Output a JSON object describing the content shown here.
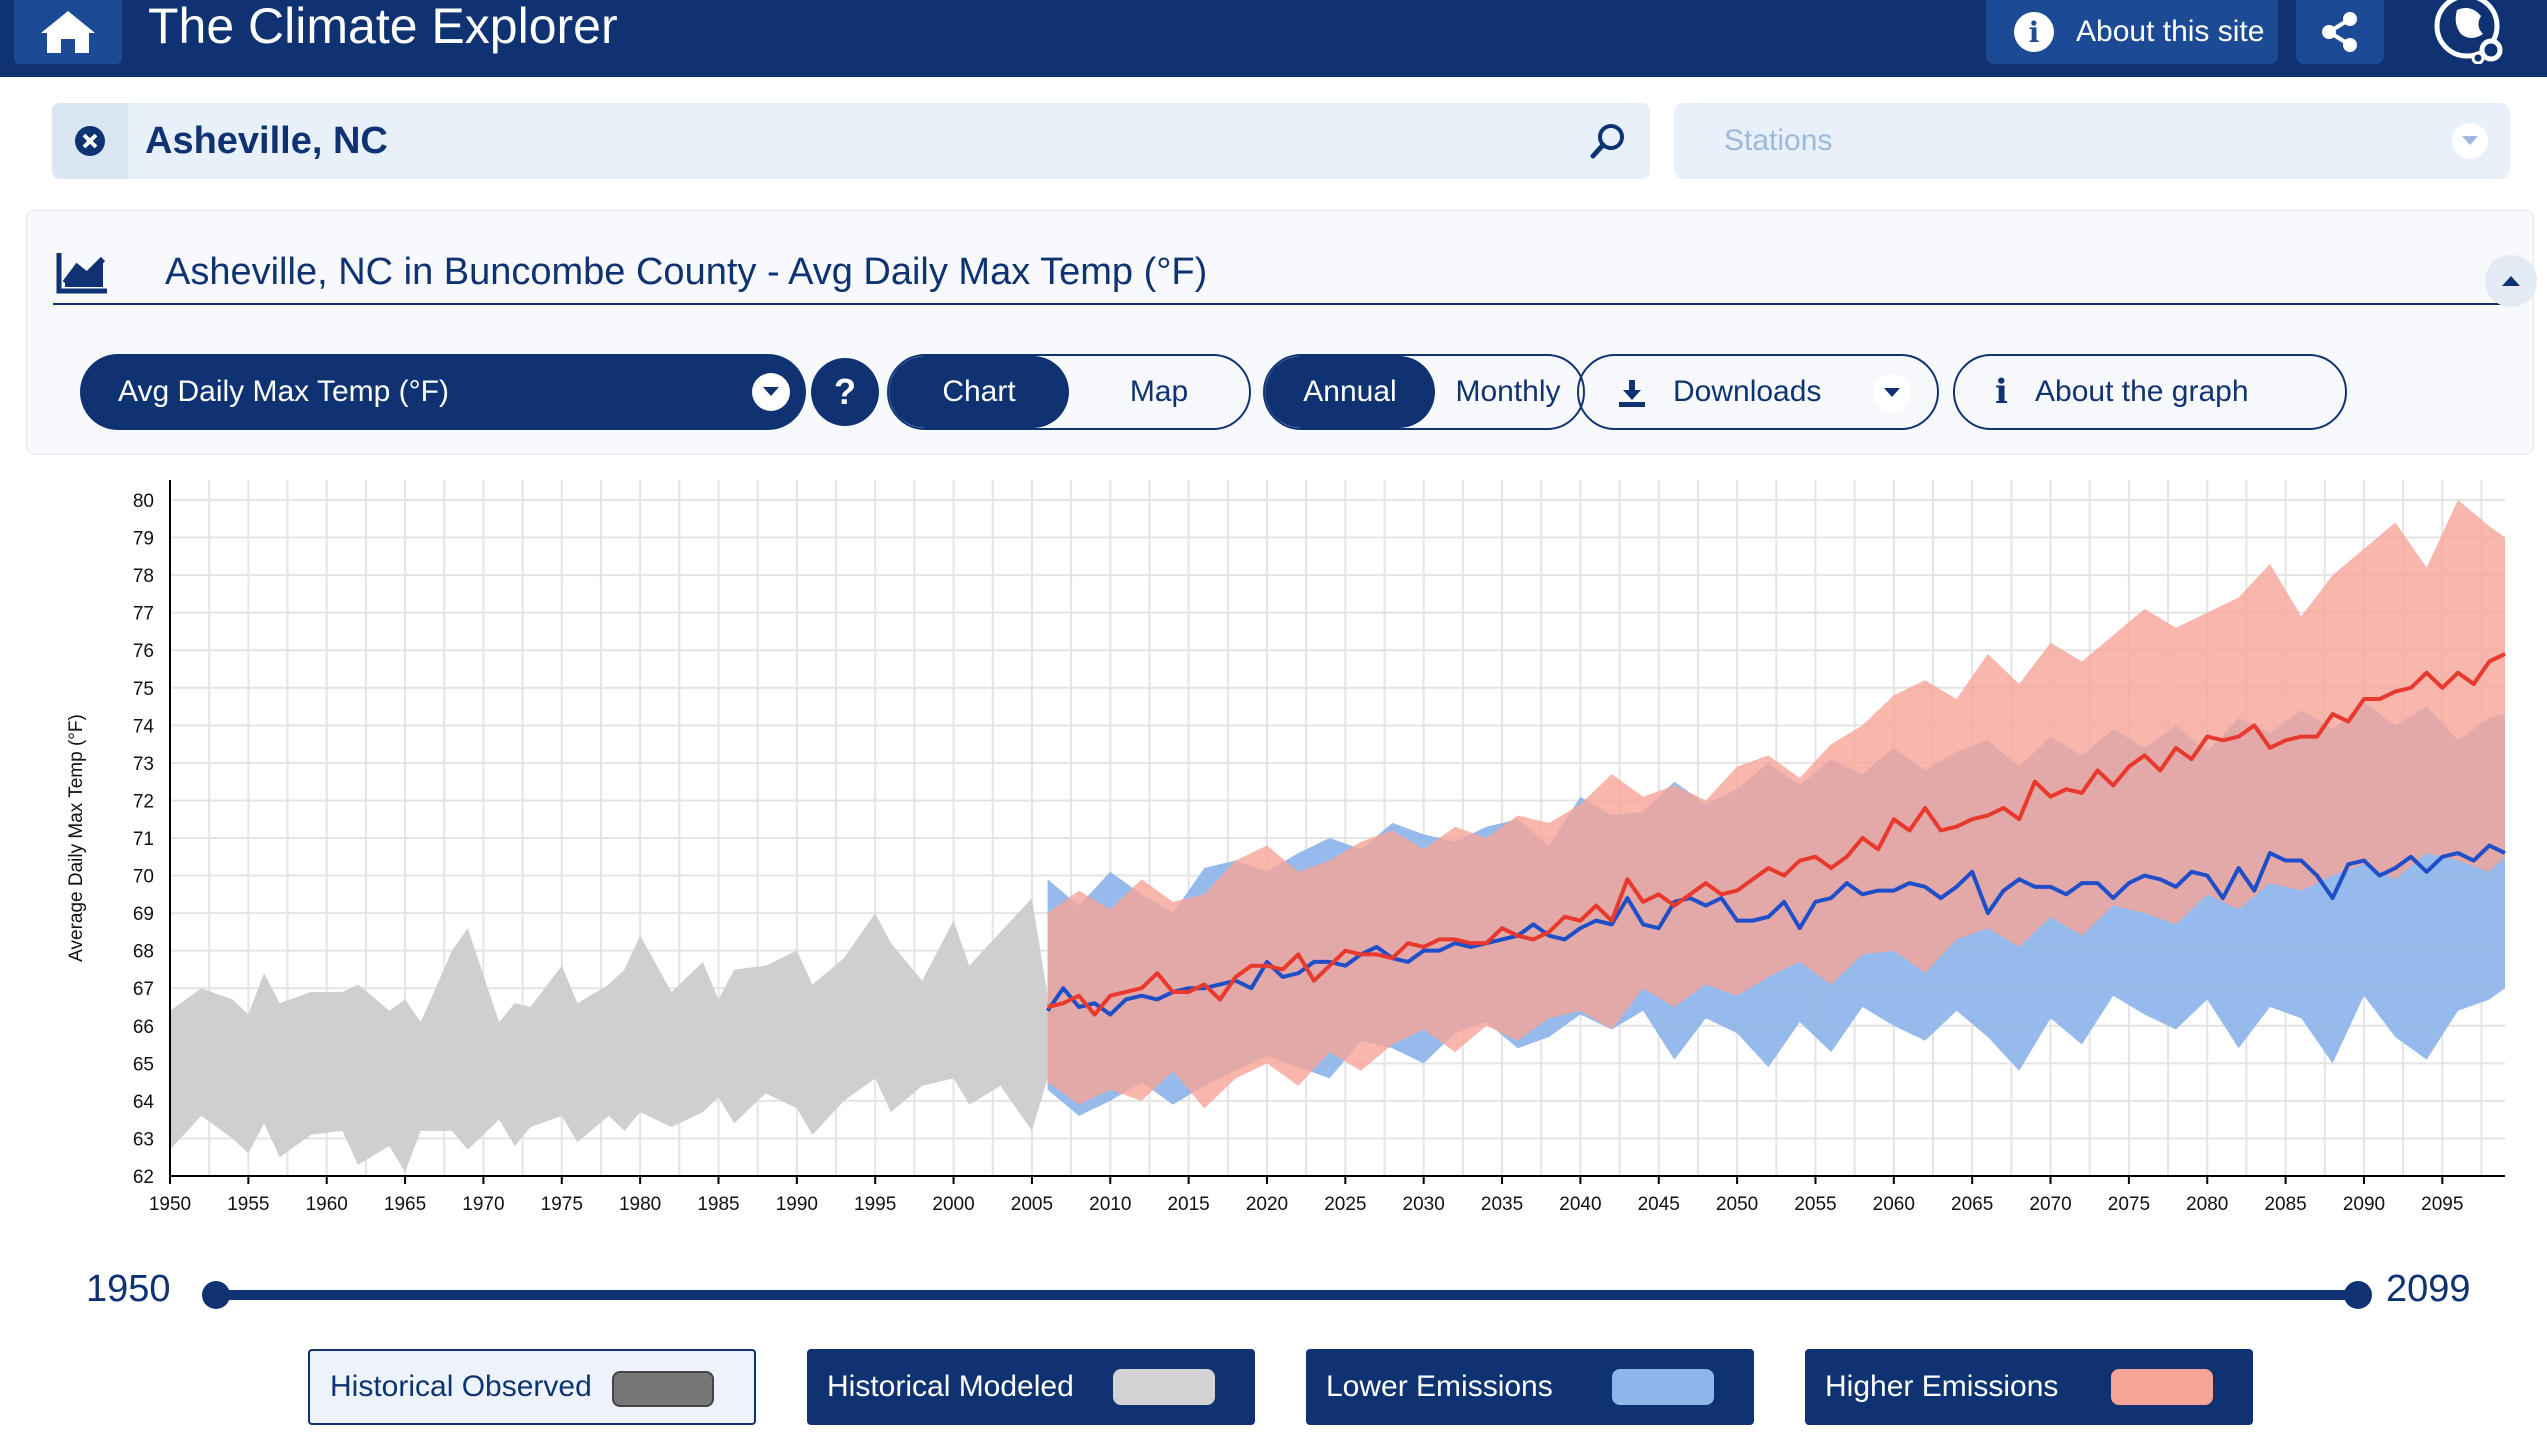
{
  "header": {
    "title": "The Climate Explorer",
    "about_label": "About this site"
  },
  "search": {
    "value": "Asheville, NC",
    "stations_placeholder": "Stations"
  },
  "panel": {
    "title": "Asheville, NC in Buncombe County - Avg Daily Max Temp (°F)",
    "variable_selected": "Avg Daily Max Temp (°F)",
    "help_label": "?",
    "view_toggle": {
      "options": [
        "Chart",
        "Map"
      ],
      "selected": "Chart"
    },
    "period_toggle": {
      "options": [
        "Annual",
        "Monthly"
      ],
      "selected": "Annual"
    },
    "downloads_label": "Downloads",
    "about_graph_label": "About the graph"
  },
  "colors": {
    "navy": "#0f3372",
    "historical_observed": "#777777",
    "historical_modeled": "#d2d2d2",
    "lower_emissions": "#8fb6ea",
    "higher_emissions": "#f6a497",
    "lower_line": "#1f4fc8",
    "higher_line": "#e8392c"
  },
  "slider": {
    "start": "1950",
    "end": "2099"
  },
  "legend": [
    {
      "label": "Historical Observed",
      "style": "outline",
      "swatch": "#777777"
    },
    {
      "label": "Historical Modeled",
      "style": "filled",
      "swatch": "#d2d2d2"
    },
    {
      "label": "Lower Emissions",
      "style": "filled",
      "swatch": "#8fb6ea"
    },
    {
      "label": "Higher Emissions",
      "style": "filled",
      "swatch": "#f6a497"
    }
  ],
  "chart_data": {
    "type": "area",
    "ylabel": "Average Daily Max Temp (°F)",
    "xlabel": "",
    "xlim": [
      1950,
      2099
    ],
    "ylim": [
      62,
      80
    ],
    "x_ticks": [
      1950,
      1955,
      1960,
      1965,
      1970,
      1975,
      1980,
      1985,
      1990,
      1995,
      2000,
      2005,
      2010,
      2015,
      2020,
      2025,
      2030,
      2035,
      2040,
      2045,
      2050,
      2055,
      2060,
      2065,
      2070,
      2075,
      2080,
      2085,
      2090,
      2095
    ],
    "y_ticks": [
      62,
      63,
      64,
      65,
      66,
      67,
      68,
      69,
      70,
      71,
      72,
      73,
      74,
      75,
      76,
      77,
      78,
      79,
      80
    ],
    "grid": true,
    "series": [
      {
        "name": "Historical Modeled",
        "kind": "range",
        "x": [
          1950,
          1952,
          1954,
          1955,
          1956,
          1957,
          1959,
          1961,
          1962,
          1964,
          1965,
          1966,
          1968,
          1969,
          1971,
          1972,
          1973,
          1975,
          1976,
          1978,
          1979,
          1980,
          1982,
          1984,
          1985,
          1986,
          1988,
          1990,
          1991,
          1993,
          1995,
          1996,
          1998,
          2000,
          2001,
          2003,
          2005,
          2006
        ],
        "low": [
          62.7,
          63.6,
          63.0,
          62.6,
          63.4,
          62.5,
          63.1,
          63.2,
          62.3,
          62.8,
          62.1,
          63.2,
          63.2,
          62.7,
          63.5,
          62.8,
          63.3,
          63.6,
          62.9,
          63.6,
          63.2,
          63.7,
          63.3,
          63.7,
          64.1,
          63.4,
          64.2,
          63.8,
          63.1,
          64.0,
          64.6,
          63.7,
          64.4,
          64.6,
          63.9,
          64.4,
          63.2,
          64.6
        ],
        "high": [
          66.4,
          67.0,
          66.7,
          66.3,
          67.4,
          66.6,
          66.9,
          66.9,
          67.1,
          66.4,
          66.7,
          66.1,
          68.0,
          68.6,
          66.1,
          66.6,
          66.5,
          67.6,
          66.6,
          67.1,
          67.5,
          68.4,
          66.9,
          67.7,
          66.7,
          67.5,
          67.6,
          68.0,
          67.1,
          67.8,
          69.0,
          68.2,
          67.2,
          68.8,
          67.6,
          68.5,
          69.4,
          66.8
        ]
      },
      {
        "name": "Lower Emissions",
        "kind": "range",
        "x": [
          2006,
          2008,
          2010,
          2012,
          2014,
          2016,
          2018,
          2020,
          2022,
          2024,
          2026,
          2028,
          2030,
          2032,
          2034,
          2036,
          2038,
          2040,
          2042,
          2044,
          2046,
          2048,
          2050,
          2052,
          2054,
          2056,
          2058,
          2060,
          2062,
          2064,
          2066,
          2068,
          2070,
          2072,
          2074,
          2076,
          2078,
          2080,
          2082,
          2084,
          2086,
          2088,
          2090,
          2092,
          2094,
          2096,
          2098,
          2099
        ],
        "low": [
          64.3,
          63.6,
          64.0,
          64.5,
          63.9,
          64.4,
          64.8,
          65.2,
          64.9,
          64.6,
          65.6,
          65.4,
          65.0,
          65.8,
          66.1,
          65.4,
          65.7,
          66.3,
          65.9,
          66.4,
          65.1,
          66.2,
          65.8,
          64.9,
          66.1,
          65.3,
          66.5,
          66.0,
          65.6,
          66.4,
          65.7,
          64.8,
          66.2,
          65.5,
          66.8,
          66.3,
          65.9,
          66.7,
          65.4,
          66.5,
          66.2,
          65.0,
          66.8,
          65.7,
          65.1,
          66.4,
          66.7,
          67.0
        ],
        "high": [
          69.9,
          69.2,
          70.1,
          69.5,
          69.0,
          70.2,
          70.4,
          70.1,
          70.6,
          71.0,
          70.7,
          71.4,
          71.1,
          70.9,
          71.3,
          71.5,
          70.8,
          72.1,
          71.6,
          71.7,
          72.5,
          71.9,
          72.3,
          73.0,
          72.4,
          73.1,
          72.7,
          73.4,
          72.8,
          73.3,
          73.6,
          72.9,
          73.7,
          73.2,
          73.9,
          73.4,
          74.0,
          73.3,
          74.2,
          73.8,
          74.4,
          73.9,
          74.6,
          74.0,
          74.5,
          73.6,
          74.2,
          74.3
        ]
      },
      {
        "name": "Higher Emissions",
        "kind": "range",
        "x": [
          2006,
          2008,
          2010,
          2012,
          2014,
          2016,
          2018,
          2020,
          2022,
          2024,
          2026,
          2028,
          2030,
          2032,
          2034,
          2036,
          2038,
          2040,
          2042,
          2044,
          2046,
          2048,
          2050,
          2052,
          2054,
          2056,
          2058,
          2060,
          2062,
          2064,
          2066,
          2068,
          2070,
          2072,
          2074,
          2076,
          2078,
          2080,
          2082,
          2084,
          2086,
          2088,
          2090,
          2092,
          2094,
          2096,
          2098,
          2099
        ],
        "low": [
          64.5,
          63.9,
          64.3,
          64.0,
          64.8,
          63.8,
          64.6,
          65.0,
          64.4,
          65.3,
          64.8,
          65.5,
          65.9,
          65.3,
          66.0,
          65.6,
          66.2,
          66.4,
          65.9,
          67.0,
          66.5,
          67.1,
          66.8,
          67.3,
          67.7,
          67.1,
          67.9,
          68.0,
          67.4,
          68.3,
          68.6,
          68.1,
          68.9,
          68.4,
          69.2,
          69.0,
          68.7,
          69.5,
          69.1,
          69.8,
          69.6,
          70.0,
          70.3,
          69.9,
          70.6,
          70.4,
          70.1,
          70.5
        ],
        "high": [
          69.0,
          69.6,
          69.1,
          69.9,
          69.3,
          69.5,
          70.4,
          70.8,
          70.1,
          70.4,
          70.9,
          71.2,
          70.7,
          71.3,
          71.0,
          71.6,
          71.4,
          71.9,
          72.7,
          72.1,
          72.4,
          72.0,
          72.9,
          73.2,
          72.6,
          73.5,
          74.0,
          74.8,
          75.2,
          74.7,
          75.9,
          75.1,
          76.2,
          75.7,
          76.4,
          77.1,
          76.6,
          77.0,
          77.4,
          78.3,
          76.9,
          78.0,
          78.7,
          79.4,
          78.2,
          80.0,
          79.3,
          79.0
        ]
      },
      {
        "name": "Lower Emissions",
        "kind": "line",
        "x": [
          2006,
          2007,
          2008,
          2009,
          2010,
          2011,
          2012,
          2013,
          2014,
          2015,
          2016,
          2017,
          2018,
          2019,
          2020,
          2021,
          2022,
          2023,
          2024,
          2025,
          2026,
          2027,
          2028,
          2029,
          2030,
          2031,
          2032,
          2033,
          2034,
          2035,
          2036,
          2037,
          2038,
          2039,
          2040,
          2041,
          2042,
          2043,
          2044,
          2045,
          2046,
          2047,
          2048,
          2049,
          2050,
          2051,
          2052,
          2053,
          2054,
          2055,
          2056,
          2057,
          2058,
          2059,
          2060,
          2061,
          2062,
          2063,
          2064,
          2065,
          2066,
          2067,
          2068,
          2069,
          2070,
          2071,
          2072,
          2073,
          2074,
          2075,
          2076,
          2077,
          2078,
          2079,
          2080,
          2081,
          2082,
          2083,
          2084,
          2085,
          2086,
          2087,
          2088,
          2089,
          2090,
          2091,
          2092,
          2093,
          2094,
          2095,
          2096,
          2097,
          2098,
          2099
        ],
        "y": [
          66.4,
          67.0,
          66.5,
          66.6,
          66.3,
          66.7,
          66.8,
          66.7,
          66.9,
          67.0,
          67.0,
          67.1,
          67.2,
          67.0,
          67.7,
          67.3,
          67.4,
          67.7,
          67.7,
          67.6,
          67.9,
          68.1,
          67.8,
          67.7,
          68.0,
          68.0,
          68.2,
          68.1,
          68.2,
          68.3,
          68.4,
          68.7,
          68.4,
          68.3,
          68.6,
          68.8,
          68.7,
          69.4,
          68.7,
          68.6,
          69.3,
          69.4,
          69.2,
          69.4,
          68.8,
          68.8,
          68.9,
          69.3,
          68.6,
          69.3,
          69.4,
          69.8,
          69.5,
          69.6,
          69.6,
          69.8,
          69.7,
          69.4,
          69.7,
          70.1,
          69.0,
          69.6,
          69.9,
          69.7,
          69.7,
          69.5,
          69.8,
          69.8,
          69.4,
          69.8,
          70.0,
          69.9,
          69.7,
          70.1,
          70.0,
          69.4,
          70.2,
          69.6,
          70.6,
          70.4,
          70.4,
          70.0,
          69.4,
          70.3,
          70.4,
          70.0,
          70.2,
          70.5,
          70.1,
          70.5,
          70.6,
          70.4,
          70.8,
          70.6
        ]
      },
      {
        "name": "Higher Emissions",
        "kind": "line",
        "x": [
          2006,
          2007,
          2008,
          2009,
          2010,
          2011,
          2012,
          2013,
          2014,
          2015,
          2016,
          2017,
          2018,
          2019,
          2020,
          2021,
          2022,
          2023,
          2024,
          2025,
          2026,
          2027,
          2028,
          2029,
          2030,
          2031,
          2032,
          2033,
          2034,
          2035,
          2036,
          2037,
          2038,
          2039,
          2040,
          2041,
          2042,
          2043,
          2044,
          2045,
          2046,
          2047,
          2048,
          2049,
          2050,
          2051,
          2052,
          2053,
          2054,
          2055,
          2056,
          2057,
          2058,
          2059,
          2060,
          2061,
          2062,
          2063,
          2064,
          2065,
          2066,
          2067,
          2068,
          2069,
          2070,
          2071,
          2072,
          2073,
          2074,
          2075,
          2076,
          2077,
          2078,
          2079,
          2080,
          2081,
          2082,
          2083,
          2084,
          2085,
          2086,
          2087,
          2088,
          2089,
          2090,
          2091,
          2092,
          2093,
          2094,
          2095,
          2096,
          2097,
          2098,
          2099
        ],
        "y": [
          66.5,
          66.6,
          66.8,
          66.3,
          66.8,
          66.9,
          67.0,
          67.4,
          66.9,
          66.9,
          67.1,
          66.7,
          67.3,
          67.6,
          67.6,
          67.5,
          67.9,
          67.2,
          67.6,
          68.0,
          67.9,
          67.9,
          67.8,
          68.2,
          68.1,
          68.3,
          68.3,
          68.2,
          68.2,
          68.6,
          68.4,
          68.3,
          68.5,
          68.9,
          68.8,
          69.2,
          68.8,
          69.9,
          69.3,
          69.5,
          69.2,
          69.5,
          69.8,
          69.5,
          69.6,
          69.9,
          70.2,
          70.0,
          70.4,
          70.5,
          70.2,
          70.5,
          71.0,
          70.7,
          71.5,
          71.2,
          71.8,
          71.2,
          71.3,
          71.5,
          71.6,
          71.8,
          71.5,
          72.5,
          72.1,
          72.3,
          72.2,
          72.8,
          72.4,
          72.9,
          73.2,
          72.8,
          73.4,
          73.1,
          73.7,
          73.6,
          73.7,
          74.0,
          73.4,
          73.6,
          73.7,
          73.7,
          74.3,
          74.1,
          74.7,
          74.7,
          74.9,
          75.0,
          75.4,
          75.0,
          75.4,
          75.1,
          75.7,
          75.9
        ]
      }
    ]
  }
}
